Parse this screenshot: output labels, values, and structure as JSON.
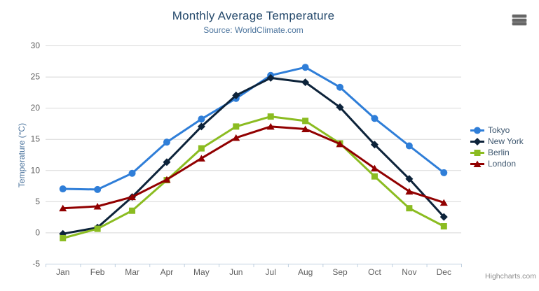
{
  "chart": {
    "title": "Monthly Average Temperature",
    "subtitle": "Source: WorldClimate.com",
    "y_axis_title": "Temperature (°C)",
    "credits": "Highcharts.com"
  },
  "icons": {
    "export_menu": "hamburger-icon"
  },
  "style_colors": {
    "title": "#274b6d",
    "subtitle": "#4d759e",
    "axis_labels": "#606060",
    "axis_line": "#C0D0E0",
    "gridline": "#D8D8D8",
    "legend_text": "#3E576F",
    "credits": "#909090"
  },
  "chart_data": {
    "type": "line",
    "title": "Monthly Average Temperature",
    "subtitle": "Source: WorldClimate.com",
    "categories": [
      "Jan",
      "Feb",
      "Mar",
      "Apr",
      "May",
      "Jun",
      "Jul",
      "Aug",
      "Sep",
      "Oct",
      "Nov",
      "Dec"
    ],
    "xlabel": "",
    "ylabel": "Temperature (°C)",
    "ylim": [
      -5,
      30
    ],
    "ytick_step": 5,
    "grid": true,
    "legend_position": "right",
    "series": [
      {
        "name": "Tokyo",
        "color": "#2f7ed8",
        "marker": "circle",
        "values": [
          7.0,
          6.9,
          9.5,
          14.5,
          18.2,
          21.5,
          25.2,
          26.5,
          23.3,
          18.3,
          13.9,
          9.6
        ]
      },
      {
        "name": "New York",
        "color": "#0d233a",
        "marker": "diamond",
        "values": [
          -0.2,
          0.8,
          5.7,
          11.3,
          17.0,
          22.0,
          24.8,
          24.1,
          20.1,
          14.1,
          8.6,
          2.5
        ]
      },
      {
        "name": "Berlin",
        "color": "#8bbc21",
        "marker": "square",
        "values": [
          -0.9,
          0.6,
          3.5,
          8.4,
          13.5,
          17.0,
          18.6,
          17.9,
          14.3,
          9.0,
          3.9,
          1.0
        ]
      },
      {
        "name": "London",
        "color": "#910000",
        "marker": "triangle",
        "values": [
          3.9,
          4.2,
          5.7,
          8.5,
          11.9,
          15.2,
          17.0,
          16.6,
          14.2,
          10.3,
          6.6,
          4.8
        ]
      }
    ]
  }
}
